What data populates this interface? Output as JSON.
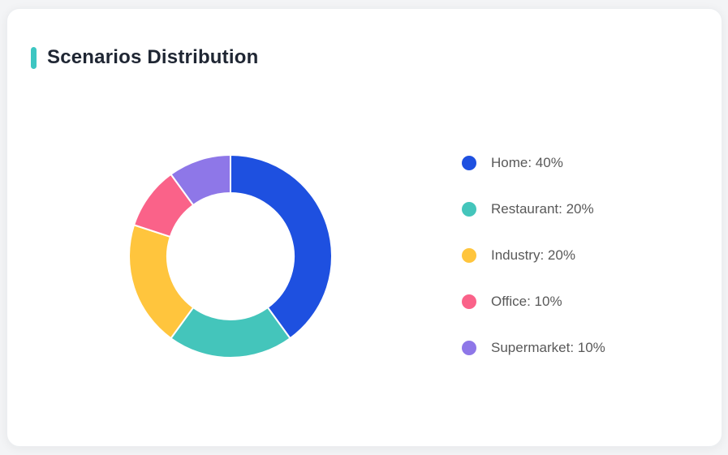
{
  "card": {
    "title": "Scenarios Distribution",
    "accent_color": "#3DC6C2"
  },
  "chart_data": {
    "type": "pie",
    "subtype": "donut",
    "title": "Scenarios Distribution",
    "start_angle_deg": 0,
    "direction": "clockwise",
    "inner_radius_ratio": 0.62,
    "border_color": "#ffffff",
    "border_width": 2,
    "legend_position": "right",
    "legend_format": "{label}: {value}%",
    "segments": [
      {
        "label": "Home",
        "value": 40,
        "color": "#1E50E0"
      },
      {
        "label": "Restaurant",
        "value": 20,
        "color": "#44C5BB"
      },
      {
        "label": "Industry",
        "value": 20,
        "color": "#FFC53D"
      },
      {
        "label": "Office",
        "value": 10,
        "color": "#FA6289"
      },
      {
        "label": "Supermarket",
        "value": 10,
        "color": "#8E77E8"
      }
    ]
  }
}
